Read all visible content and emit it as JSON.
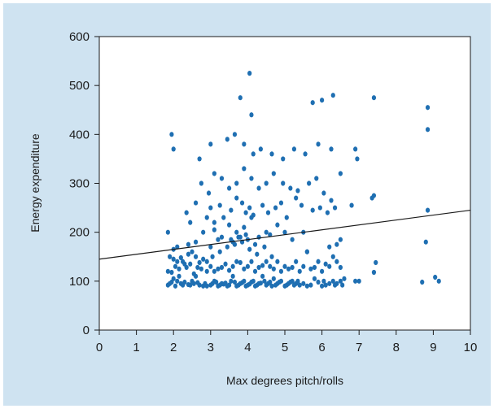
{
  "chart_data": {
    "type": "scatter",
    "title": "",
    "xlabel": "Max degrees pitch/rolls",
    "ylabel": "Energy expenditure",
    "xlim": [
      0,
      10
    ],
    "ylim": [
      0,
      600
    ],
    "x_ticks": [
      "0",
      "1",
      "2",
      "3",
      "4",
      "5",
      "6",
      "7",
      "8",
      "9",
      "10"
    ],
    "y_ticks": [
      "0",
      "100",
      "200",
      "300",
      "400",
      "500",
      "600"
    ],
    "grid": false,
    "legend": "none",
    "point_color": "#1f6fb2",
    "panel_color": "#cfe3f1",
    "trendline": {
      "x": [
        0,
        10
      ],
      "y": [
        145,
        245
      ]
    },
    "series": [
      {
        "x": [
          1.85,
          1.9,
          1.95,
          2.0,
          2.05,
          2.1,
          2.15,
          2.2,
          2.25,
          2.3,
          2.4,
          2.45,
          2.5,
          2.55,
          2.6,
          2.65,
          2.7,
          2.8,
          2.85,
          2.9,
          1.85,
          1.95,
          2.05,
          2.15,
          2.25,
          2.35,
          2.45,
          2.55,
          2.65,
          2.75,
          2.9,
          3.0,
          3.05,
          3.1,
          3.15,
          3.2,
          3.25,
          3.3,
          3.35,
          3.4,
          3.45,
          3.5,
          3.55,
          3.6,
          3.65,
          3.7,
          3.75,
          3.8,
          3.85,
          3.9,
          3.95,
          4.0,
          4.05,
          4.1,
          4.15,
          4.2,
          4.25,
          4.3,
          4.35,
          4.4,
          4.45,
          4.5,
          4.55,
          4.6,
          4.65,
          4.7,
          4.75,
          4.8,
          4.85,
          4.9,
          5.0,
          5.05,
          5.1,
          5.15,
          5.2,
          5.25,
          5.3,
          5.35,
          5.4,
          5.5,
          5.6,
          5.7,
          5.8,
          5.9,
          6.0,
          6.05,
          6.1,
          6.2,
          6.3,
          6.35,
          6.4,
          6.5,
          6.55,
          6.6,
          6.9,
          7.0,
          7.4,
          7.45,
          8.7,
          9.05,
          9.15,
          1.9,
          2.0,
          2.1,
          2.2,
          2.3,
          2.4,
          2.5,
          2.6,
          2.7,
          2.8,
          2.9,
          3.0,
          3.1,
          3.2,
          3.3,
          3.4,
          3.5,
          3.6,
          3.7,
          3.8,
          3.9,
          4.0,
          4.1,
          4.2,
          4.3,
          4.4,
          4.5,
          4.6,
          4.7,
          4.8,
          4.9,
          5.0,
          5.1,
          5.2,
          5.3,
          5.4,
          5.5,
          5.6,
          5.7,
          5.8,
          5.9,
          6.0,
          6.1,
          6.2,
          6.3,
          6.4,
          6.5,
          3.05,
          3.25,
          3.45,
          3.65,
          3.85,
          4.05,
          4.25,
          4.45,
          4.65,
          3.55,
          3.75,
          3.95,
          2.0,
          2.1,
          2.4,
          2.6,
          2.8,
          3.0,
          3.1,
          3.2,
          3.3,
          3.5,
          3.6,
          3.7,
          3.8,
          3.9,
          4.0,
          4.1,
          4.2,
          4.3,
          4.5,
          4.6,
          4.8,
          5.0,
          5.2,
          5.5,
          5.6,
          6.2,
          6.4,
          6.5,
          7.4,
          8.8,
          1.85,
          2.35,
          2.45,
          2.9,
          3.0,
          3.1,
          3.25,
          3.35,
          3.55,
          3.7,
          3.85,
          3.95,
          4.05,
          4.15,
          4.4,
          4.55,
          4.75,
          4.9,
          5.05,
          5.3,
          5.45,
          5.75,
          5.95,
          6.15,
          6.35,
          6.8,
          8.85,
          2.0,
          2.6,
          2.75,
          2.95,
          3.1,
          3.3,
          3.5,
          3.7,
          3.9,
          4.1,
          4.3,
          4.5,
          4.7,
          4.95,
          5.15,
          5.35,
          5.65,
          5.85,
          6.05,
          6.25,
          6.5,
          6.95,
          7.35,
          1.95,
          2.7,
          3.0,
          3.45,
          3.65,
          3.9,
          4.15,
          4.35,
          4.65,
          4.95,
          5.25,
          5.55,
          5.9,
          6.25,
          6.9,
          8.85,
          3.8,
          4.05,
          5.75,
          6.0,
          6.3,
          7.4,
          8.85,
          4.1
        ],
        "y": [
          92,
          95,
          98,
          105,
          90,
          100,
          110,
          95,
          92,
          98,
          93,
          92,
          100,
          95,
          110,
          97,
          92,
          90,
          95,
          90,
          120,
          118,
          130,
          125,
          140,
          128,
          135,
          115,
          128,
          125,
          120,
          92,
          95,
          100,
          98,
          90,
          92,
          95,
          94,
          96,
          90,
          92,
          100,
          110,
          98,
          90,
          92,
          95,
          97,
          100,
          90,
          92,
          94,
          98,
          100,
          90,
          92,
          95,
          96,
          110,
          100,
          92,
          95,
          98,
          90,
          105,
          92,
          95,
          98,
          100,
          90,
          92,
          95,
          98,
          100,
          92,
          95,
          100,
          92,
          95,
          90,
          92,
          105,
          98,
          90,
          100,
          92,
          95,
          100,
          92,
          95,
          100,
          92,
          105,
          100,
          100,
          118,
          138,
          98,
          108,
          100,
          150,
          145,
          140,
          148,
          135,
          155,
          160,
          150,
          138,
          145,
          140,
          130,
          120,
          125,
          128,
          135,
          122,
          130,
          140,
          138,
          125,
          130,
          140,
          120,
          128,
          132,
          140,
          130,
          125,
          140,
          120,
          130,
          125,
          128,
          140,
          120,
          130,
          160,
          125,
          128,
          140,
          120,
          135,
          130,
          150,
          140,
          128,
          150,
          160,
          170,
          175,
          180,
          165,
          155,
          170,
          150,
          185,
          190,
          195,
          165,
          170,
          175,
          180,
          200,
          170,
          205,
          185,
          190,
          215,
          180,
          200,
          190,
          210,
          185,
          230,
          175,
          190,
          200,
          195,
          215,
          200,
          185,
          200,
          160,
          170,
          175,
          185,
          275,
          180,
          200,
          240,
          220,
          230,
          250,
          220,
          255,
          230,
          245,
          270,
          260,
          240,
          250,
          235,
          255,
          240,
          250,
          260,
          230,
          270,
          255,
          245,
          250,
          240,
          250,
          255,
          245,
          370,
          260,
          300,
          280,
          320,
          310,
          290,
          300,
          330,
          310,
          290,
          300,
          320,
          300,
          290,
          285,
          300,
          310,
          280,
          265,
          320,
          350,
          270,
          400,
          350,
          380,
          390,
          400,
          380,
          360,
          370,
          360,
          350,
          370,
          360,
          380,
          370,
          370,
          410,
          475,
          525,
          465,
          470,
          480,
          475,
          455,
          440
        ]
      }
    ]
  }
}
